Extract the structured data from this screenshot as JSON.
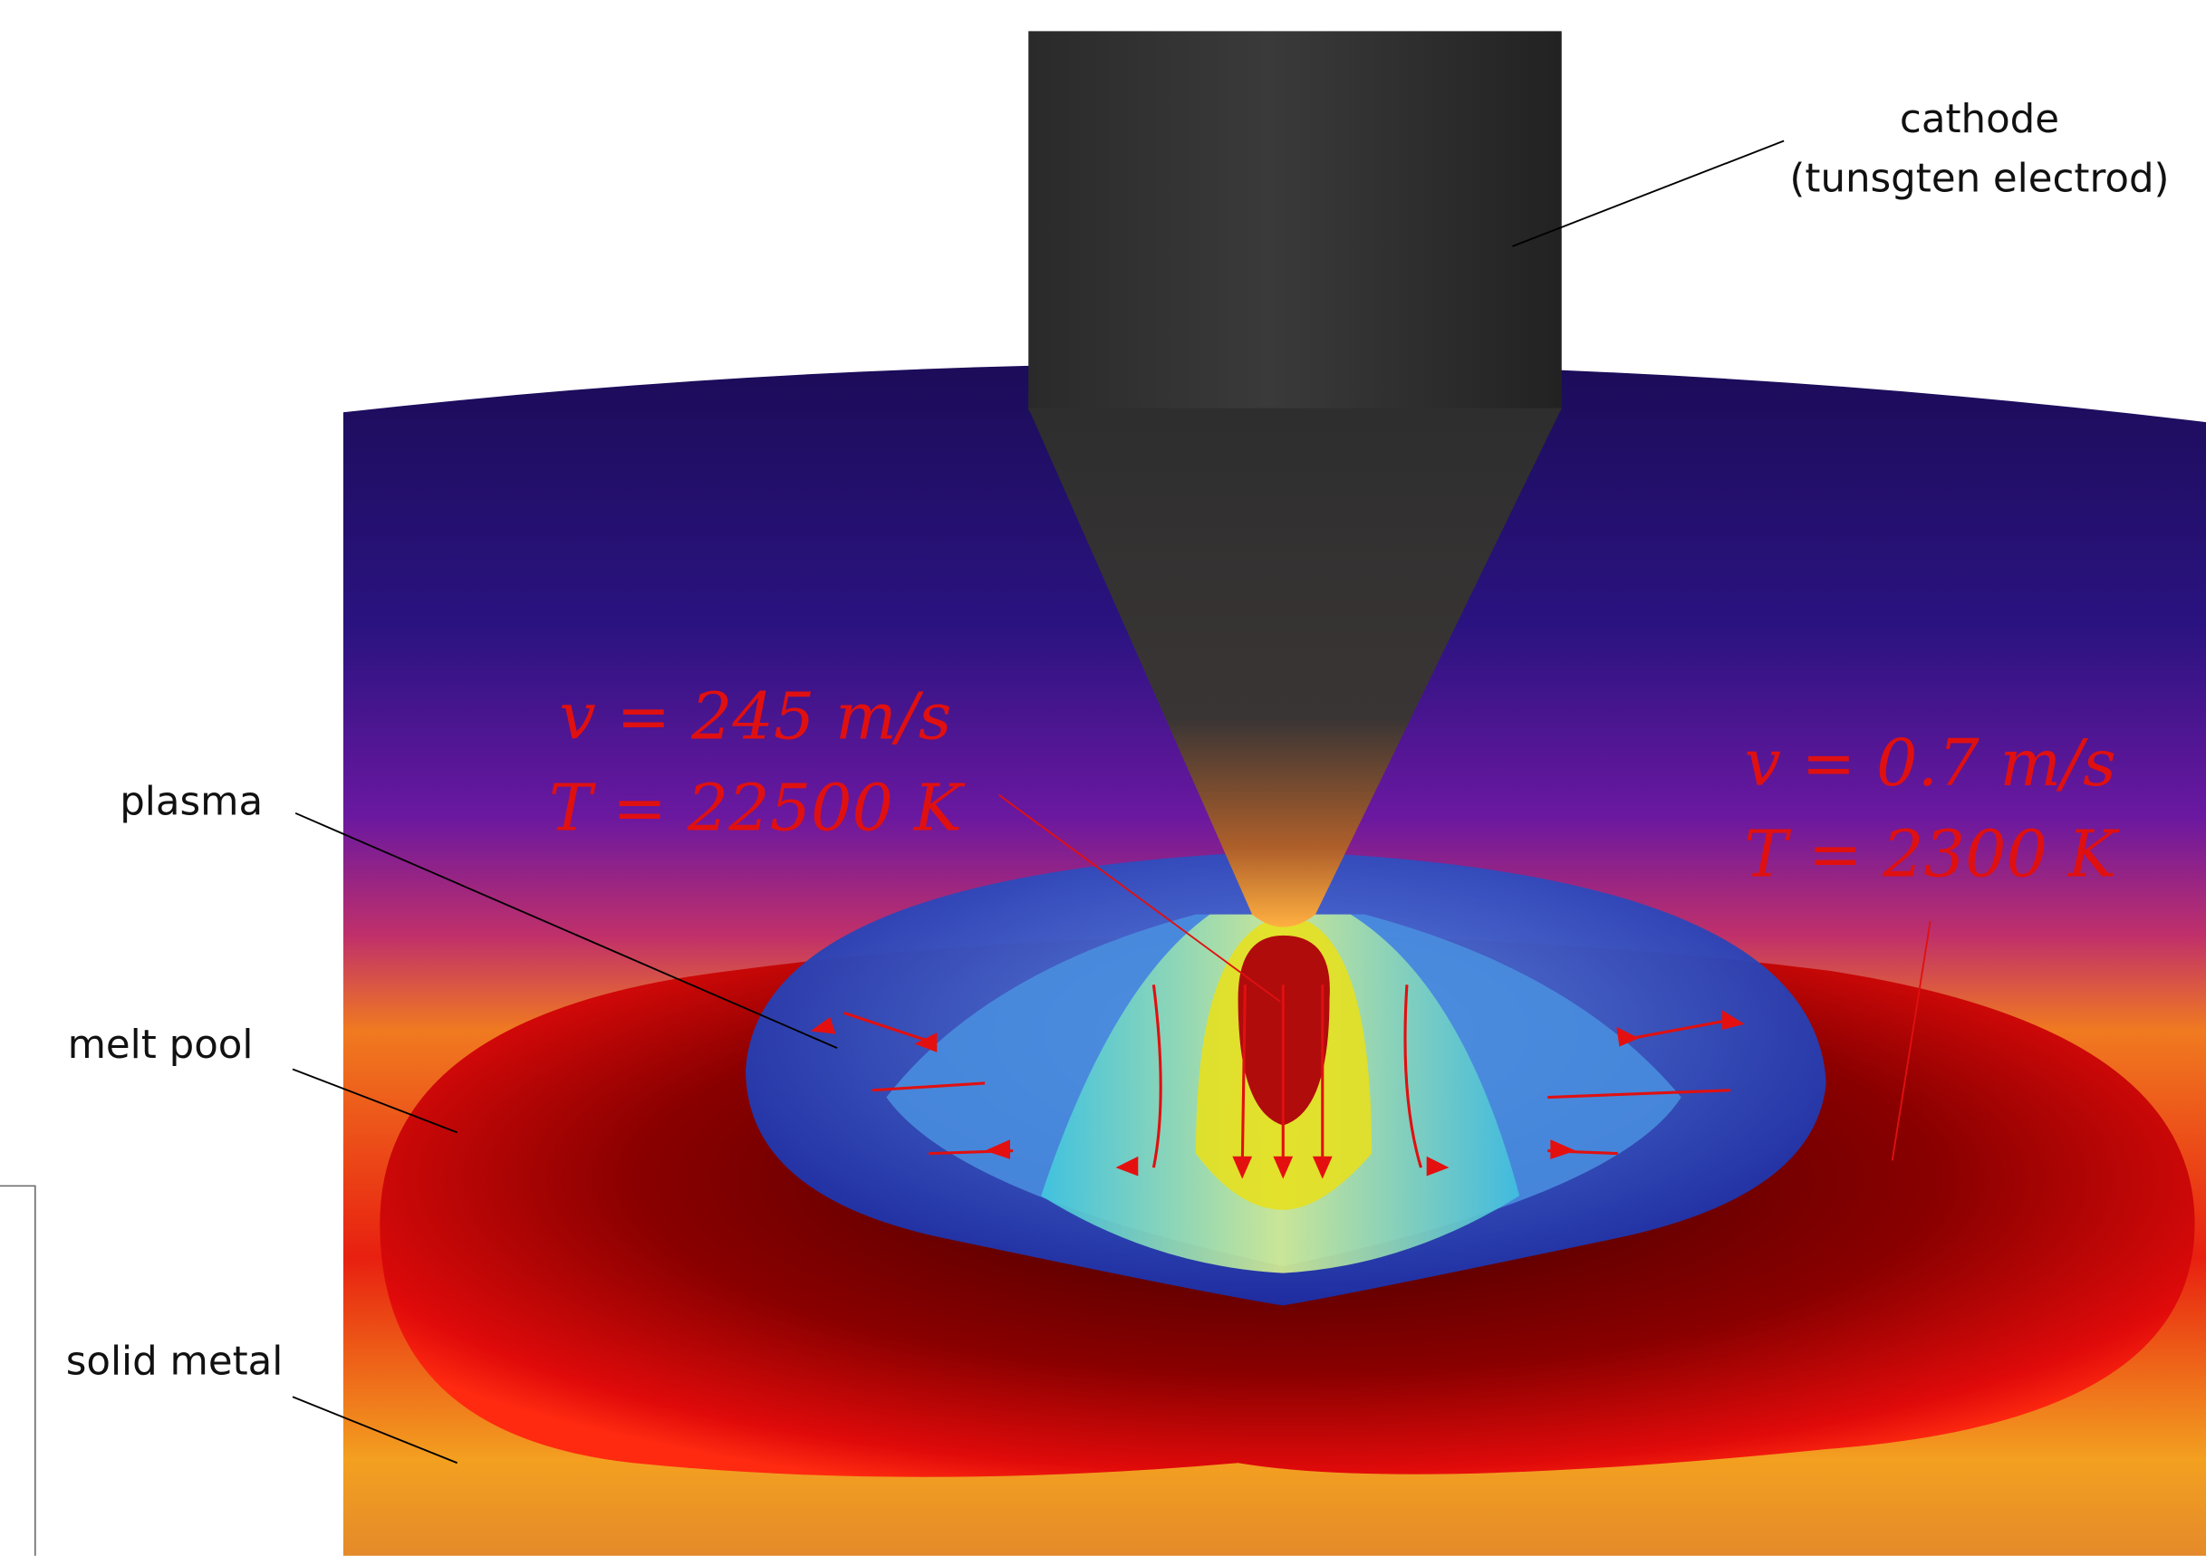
{
  "labels": {
    "cathode": "cathode",
    "cathode_detail": "(tunsgten electrod)",
    "plasma": "plasma",
    "melt_pool": "melt pool",
    "solid_metal": "solid metal"
  },
  "annotations": [
    {
      "velocity": "v = 245 m/s",
      "temperature": "T = 22500 K"
    },
    {
      "velocity": "v = 0.7 m/s",
      "temperature": "T = 2300 K"
    }
  ]
}
